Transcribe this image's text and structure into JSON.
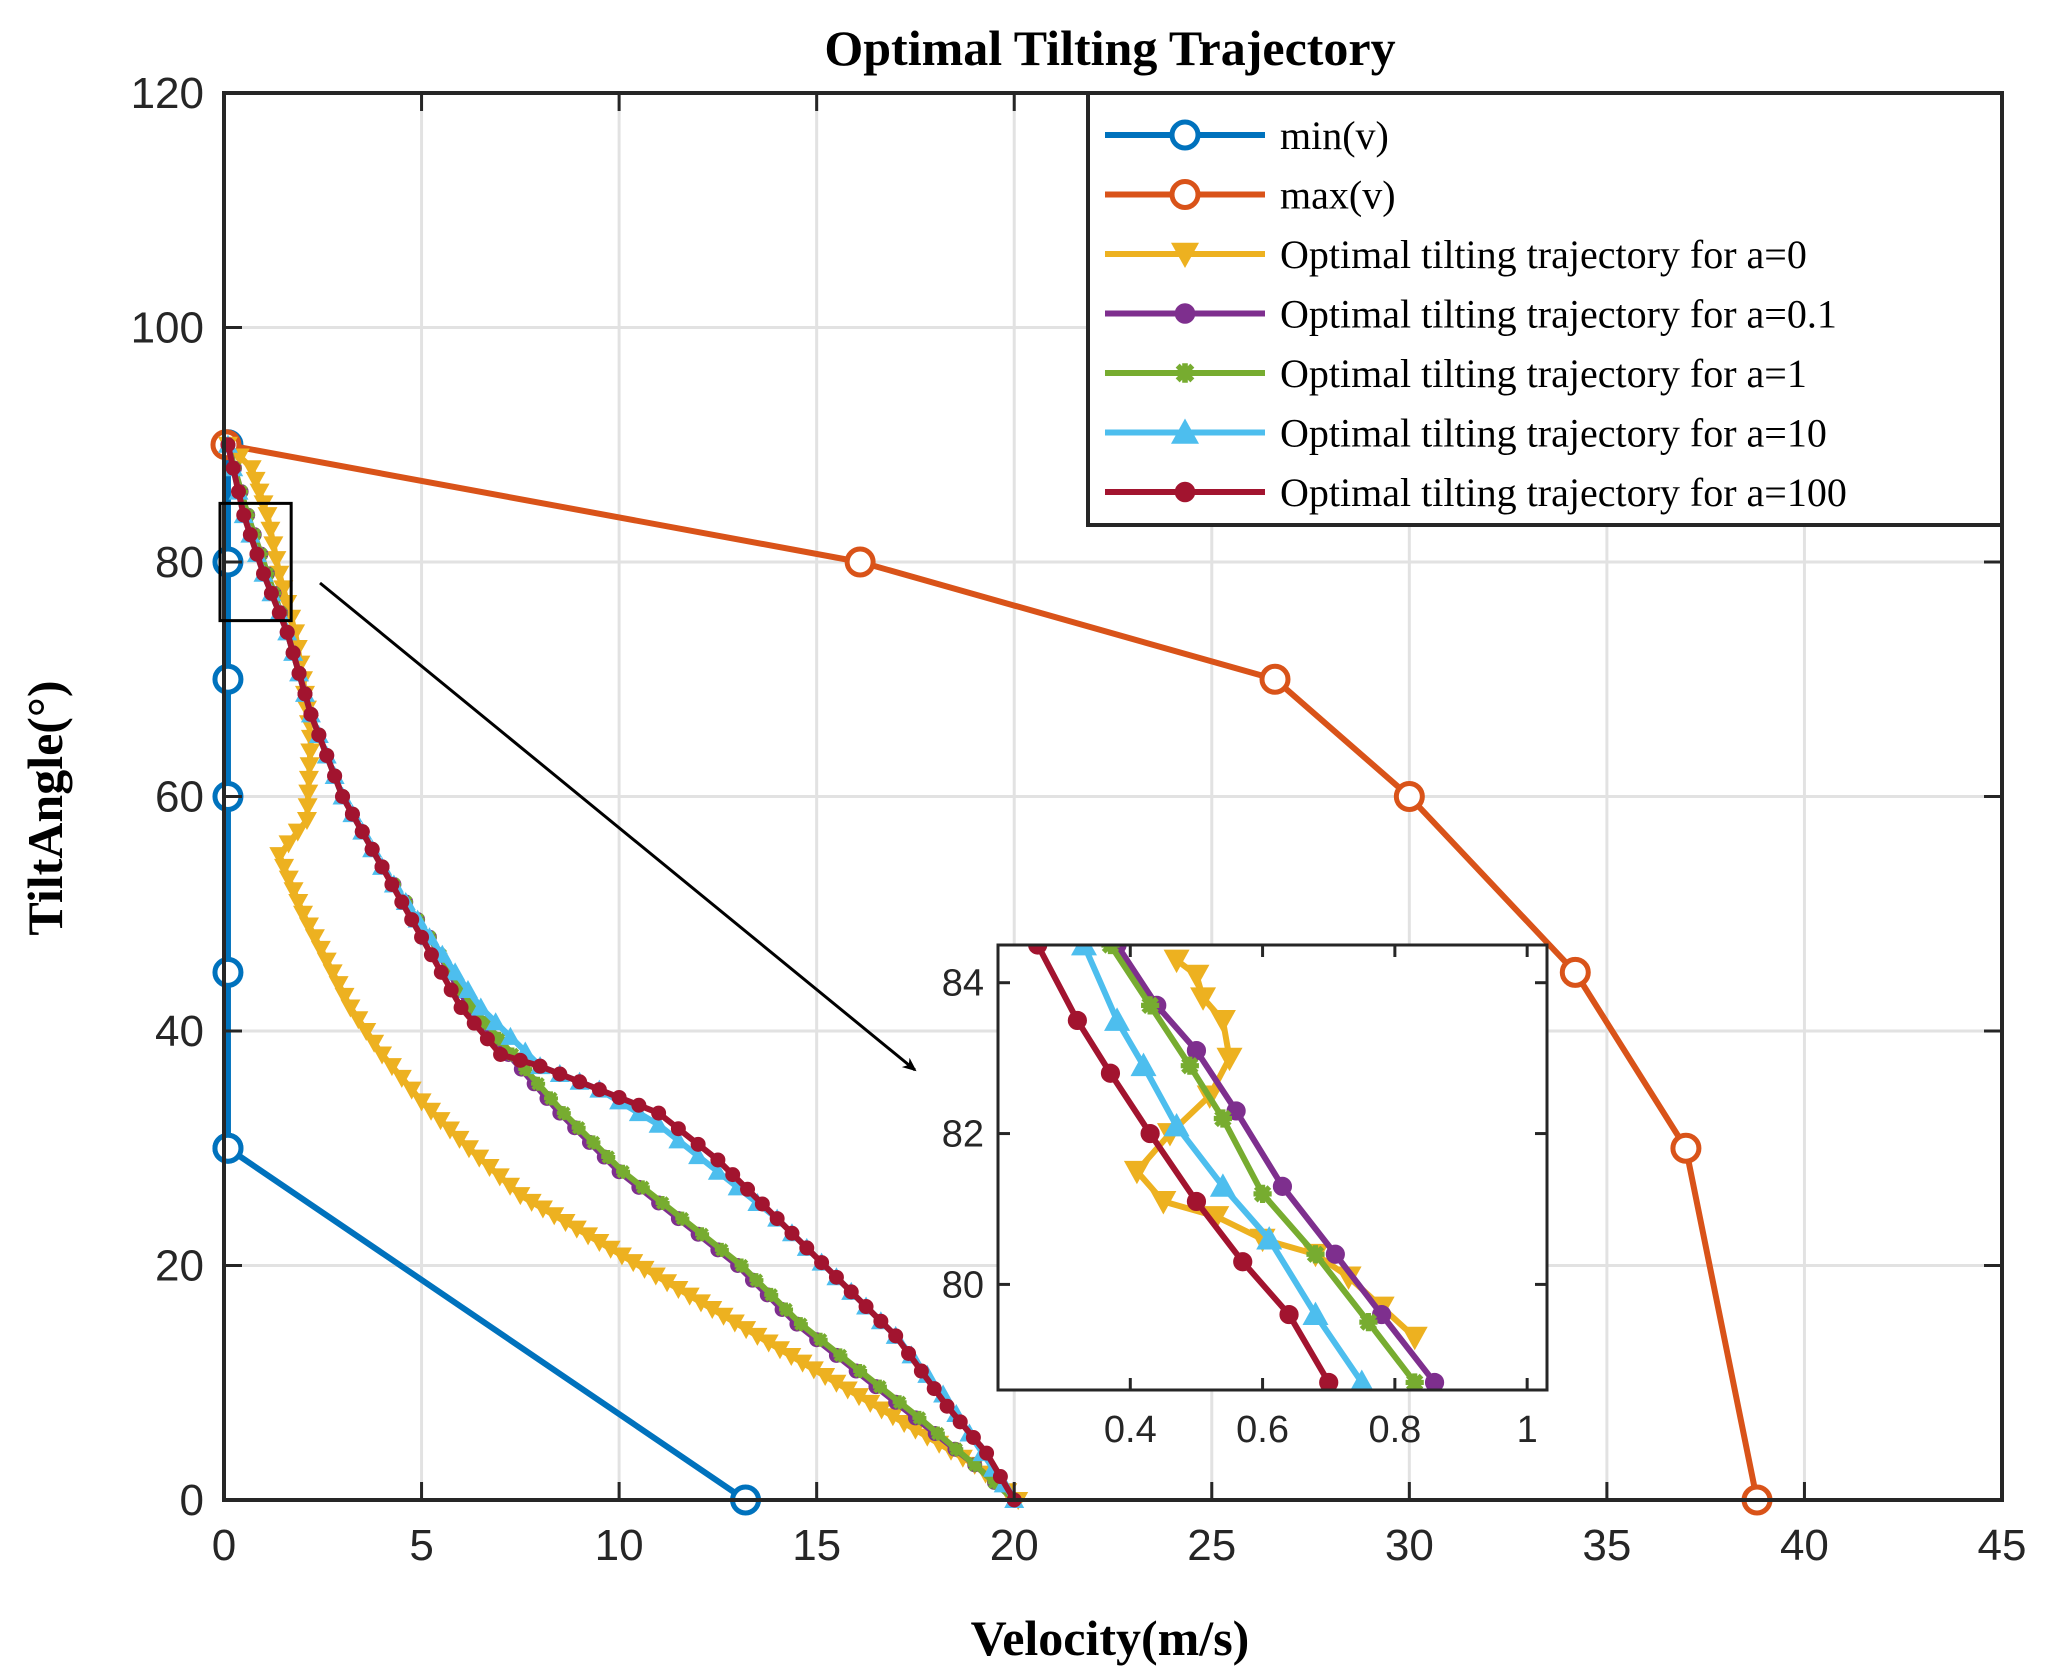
{
  "chart_data": {
    "type": "line",
    "title": "Optimal Tilting Trajectory",
    "xlabel": "Velocity(m/s)",
    "ylabel": "TiltAngle(°)",
    "xlim": [
      0,
      45
    ],
    "ylim": [
      0,
      120
    ],
    "xticks": [
      0,
      5,
      10,
      15,
      20,
      25,
      30,
      35,
      40,
      45
    ],
    "yticks": [
      0,
      20,
      40,
      60,
      80,
      100,
      120
    ],
    "grid": true,
    "legend_position": "top-right",
    "series": [
      {
        "name": "min(v)",
        "color": "#0072BD",
        "marker": "circle",
        "x": [
          0.1,
          0.1,
          0.1,
          0.1,
          0.1,
          0.1,
          0.1,
          13.2
        ],
        "y": [
          90,
          80,
          70,
          60,
          45,
          30,
          30,
          0
        ]
      },
      {
        "name": "max(v)",
        "color": "#D95319",
        "marker": "circle",
        "x": [
          0.05,
          16.1,
          26.6,
          30.0,
          34.2,
          37.0,
          38.8
        ],
        "y": [
          90,
          80,
          70,
          60,
          45,
          30,
          0
        ]
      },
      {
        "name": "Optimal tilting trajectory for a=0",
        "color": "#EDB120",
        "marker": "triangle-down",
        "x": [
          0.1,
          0.7,
          1.1,
          1.4,
          1.8,
          2.0,
          2.2,
          2.1,
          1.4,
          2.0,
          2.6,
          3.2,
          4.0,
          5.0,
          6.2,
          7.5,
          9.5,
          11.5,
          13.5,
          15.5,
          17.5,
          19.0,
          20.1
        ],
        "y": [
          90,
          88,
          84,
          79,
          74,
          70,
          65,
          58,
          55,
          50,
          46,
          42,
          38,
          34,
          30,
          26,
          22,
          18,
          14,
          10,
          6,
          3,
          0
        ]
      },
      {
        "name": "Optimal tilting trajectory for a=0.1",
        "color": "#7E2F8E",
        "marker": "dot",
        "x": [
          0.1,
          0.6,
          1.1,
          1.6,
          2.2,
          3.0,
          4.0,
          5.2,
          6.2,
          7.2,
          8.5,
          10.0,
          11.5,
          13.0,
          14.5,
          16.0,
          17.5,
          19.0,
          20.0
        ],
        "y": [
          90,
          84,
          79,
          74,
          67,
          60,
          54,
          48,
          42,
          38,
          33,
          28,
          24,
          20,
          15,
          11,
          7,
          3,
          0
        ]
      },
      {
        "name": "Optimal tilting trajectory for a=1",
        "color": "#77AC30",
        "marker": "star",
        "x": [
          0.1,
          0.6,
          1.1,
          1.6,
          2.2,
          3.0,
          4.0,
          5.2,
          6.3,
          7.3,
          8.6,
          10.1,
          11.6,
          13.1,
          14.6,
          16.1,
          17.6,
          19.0,
          20.0
        ],
        "y": [
          90,
          84,
          79,
          74,
          67,
          60,
          54,
          48,
          42,
          38,
          33,
          28,
          24,
          20,
          15,
          11,
          7,
          3,
          0
        ]
      },
      {
        "name": "Optimal tilting trajectory for a=10",
        "color": "#4DBEEE",
        "marker": "triangle-up",
        "x": [
          0.1,
          0.5,
          1.0,
          1.6,
          2.2,
          3.0,
          4.0,
          5.2,
          6.5,
          8.0,
          9.5,
          11.0,
          12.5,
          14.0,
          15.5,
          17.0,
          18.2,
          19.2,
          20.0
        ],
        "y": [
          90,
          84,
          79,
          74,
          67,
          60,
          54,
          48,
          42,
          37,
          35,
          32,
          28,
          24,
          19,
          14,
          9,
          4,
          0
        ]
      },
      {
        "name": "Optimal tilting trajectory for a=100",
        "color": "#A2142F",
        "marker": "dot",
        "x": [
          0.1,
          0.5,
          1.0,
          1.6,
          2.2,
          3.0,
          4.0,
          5.0,
          6.0,
          7.0,
          8.0,
          9.5,
          11.0,
          12.5,
          14.0,
          15.5,
          17.0,
          18.3,
          19.3,
          20.0
        ],
        "y": [
          90,
          84,
          79,
          74,
          67,
          60,
          54,
          48,
          42,
          38,
          37,
          35,
          33,
          29,
          24,
          19,
          14,
          8,
          4,
          0
        ]
      }
    ],
    "inset": {
      "xlim": [
        0.2,
        1.03
      ],
      "ylim": [
        78.6,
        84.5
      ],
      "xticks": [
        0.4,
        0.6,
        0.8,
        1
      ],
      "xtick_labels": [
        "0.4",
        "0.6",
        "0.8",
        "1"
      ],
      "yticks": [
        80,
        82,
        84
      ],
      "zoom_box": {
        "x": [
          0,
          1.7
        ],
        "y": [
          75,
          85
        ]
      },
      "series": [
        {
          "name": "Optimal tilting trajectory for a=0",
          "color": "#EDB120",
          "marker": "triangle-down",
          "x": [
            0.83,
            0.78,
            0.73,
            0.68,
            0.6,
            0.53,
            0.45,
            0.41,
            0.46,
            0.52,
            0.55,
            0.54,
            0.51,
            0.5,
            0.47
          ],
          "y": [
            79.3,
            79.7,
            80.1,
            80.4,
            80.6,
            80.9,
            81.1,
            81.5,
            82.0,
            82.5,
            83.0,
            83.5,
            83.8,
            84.1,
            84.3
          ]
        },
        {
          "name": "Optimal tilting trajectory for a=0.1",
          "color": "#7E2F8E",
          "marker": "dot",
          "x": [
            0.86,
            0.78,
            0.71,
            0.63,
            0.56,
            0.5,
            0.44,
            0.38
          ],
          "y": [
            78.7,
            79.6,
            80.4,
            81.3,
            82.3,
            83.1,
            83.7,
            84.5
          ]
        },
        {
          "name": "Optimal tilting trajectory for a=1",
          "color": "#77AC30",
          "marker": "star",
          "x": [
            0.83,
            0.76,
            0.68,
            0.6,
            0.54,
            0.49,
            0.43,
            0.37
          ],
          "y": [
            78.7,
            79.5,
            80.4,
            81.2,
            82.2,
            82.9,
            83.7,
            84.5
          ]
        },
        {
          "name": "Optimal tilting trajectory for a=10",
          "color": "#4DBEEE",
          "marker": "triangle-up",
          "x": [
            0.75,
            0.68,
            0.61,
            0.54,
            0.47,
            0.42,
            0.38,
            0.33
          ],
          "y": [
            78.7,
            79.6,
            80.6,
            81.3,
            82.1,
            82.9,
            83.5,
            84.5
          ]
        },
        {
          "name": "Optimal tilting trajectory for a=100",
          "color": "#A2142F",
          "marker": "dot",
          "x": [
            0.7,
            0.64,
            0.57,
            0.5,
            0.43,
            0.37,
            0.32,
            0.26
          ],
          "y": [
            78.7,
            79.6,
            80.3,
            81.1,
            82.0,
            82.8,
            83.5,
            84.5
          ]
        }
      ]
    }
  }
}
